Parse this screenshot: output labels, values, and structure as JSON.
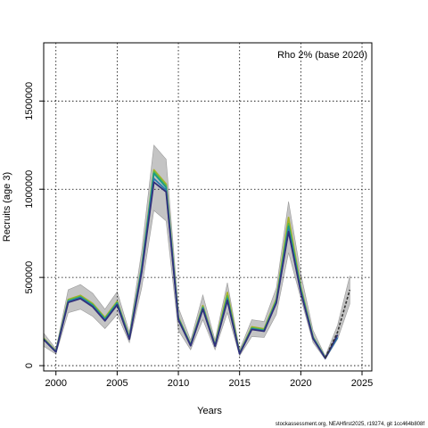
{
  "chart_data": {
    "type": "line",
    "legend_text": "Rho 2% (base 2020)",
    "legend_position": "top-right",
    "xlabel": "Years",
    "ylabel": "Recruits (age 3)",
    "footer": "stockassessment.org, NEAHfirst2025, r19274, git 1cc464b808f",
    "xlim": [
      1999,
      2025.8
    ],
    "ylim": [
      -30000,
      1830000
    ],
    "x_ticks": [
      2000,
      2005,
      2010,
      2015,
      2020,
      2025
    ],
    "y_ticks": [
      0,
      500000,
      1000000,
      1500000
    ],
    "grid": true,
    "x": [
      1999,
      2000,
      2001,
      2002,
      2003,
      2004,
      2005,
      2006,
      2007,
      2008,
      2009,
      2010,
      2011,
      2012,
      2013,
      2014,
      2015,
      2016,
      2017,
      2018,
      2019,
      2020,
      2021,
      2022,
      2023,
      2024
    ],
    "confidence_band": {
      "x": [
        1999,
        2000,
        2001,
        2002,
        2003,
        2004,
        2005,
        2006,
        2007,
        2008,
        2009,
        2010,
        2011,
        2012,
        2013,
        2014,
        2015,
        2016,
        2017,
        2018,
        2019,
        2020,
        2021,
        2022,
        2023,
        2024
      ],
      "lower": [
        110000,
        65000,
        300000,
        320000,
        280000,
        210000,
        290000,
        130000,
        440000,
        880000,
        820000,
        200000,
        90000,
        260000,
        90000,
        300000,
        55000,
        165000,
        160000,
        290000,
        640000,
        380000,
        130000,
        35000,
        150000,
        350000
      ],
      "upper": [
        185000,
        95000,
        430000,
        460000,
        410000,
        320000,
        420000,
        190000,
        650000,
        1250000,
        1170000,
        330000,
        145000,
        400000,
        145000,
        470000,
        90000,
        260000,
        250000,
        440000,
        930000,
        520000,
        200000,
        55000,
        230000,
        510000
      ]
    },
    "series": [
      {
        "color": "#a8b22a",
        "values": [
          155000,
          82000,
          375000,
          398000,
          352000,
          272000,
          364000,
          162000,
          560000,
          1110000,
          1030000,
          275000,
          120000,
          340000,
          118000,
          415000,
          72000,
          220000,
          208000,
          378000,
          840000,
          445000,
          162000,
          46000,
          null,
          null
        ]
      },
      {
        "color": "#58b848",
        "values": [
          152000,
          80000,
          370000,
          392000,
          346000,
          266000,
          358000,
          158000,
          555000,
          1100000,
          1020000,
          270000,
          118000,
          333000,
          115000,
          395000,
          70000,
          214000,
          203000,
          370000,
          805000,
          435000,
          160000,
          45000,
          null,
          null
        ]
      },
      {
        "color": "#1a9a8a",
        "values": [
          150000,
          79000,
          365000,
          388000,
          342000,
          262000,
          354000,
          156000,
          548000,
          1090000,
          1010000,
          266000,
          116000,
          328000,
          113000,
          382000,
          69000,
          210000,
          199000,
          363000,
          790000,
          428000,
          158000,
          44000,
          null,
          null
        ]
      },
      {
        "color": "#2a7ab0",
        "values": [
          149000,
          78000,
          362000,
          385000,
          338000,
          258000,
          350000,
          153000,
          540000,
          1060000,
          995000,
          263000,
          115000,
          325000,
          112000,
          375000,
          68000,
          208000,
          197000,
          360000,
          770000,
          420000,
          156000,
          43000,
          160000,
          null
        ]
      },
      {
        "color": "#32307a",
        "values": [
          148000,
          77000,
          358000,
          380000,
          334000,
          254000,
          345000,
          150000,
          530000,
          1040000,
          985000,
          260000,
          113000,
          320000,
          110000,
          370000,
          67000,
          205000,
          195000,
          355000,
          760000,
          415000,
          153000,
          42000,
          175000,
          null
        ]
      },
      {
        "color": "#333333",
        "dashed": true,
        "values": [
          null,
          null,
          null,
          null,
          null,
          null,
          null,
          null,
          null,
          null,
          null,
          null,
          null,
          null,
          null,
          null,
          null,
          null,
          null,
          null,
          null,
          null,
          null,
          45000,
          190000,
          430000
        ]
      }
    ]
  }
}
